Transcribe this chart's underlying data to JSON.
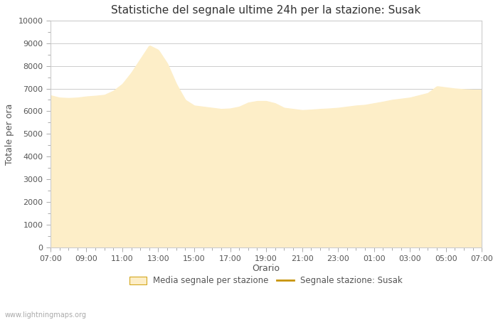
{
  "title": "Statistiche del segnale ultime 24h per la stazione: Susak",
  "xlabel": "Orario",
  "ylabel": "Totale per ora",
  "x_ticks": [
    "07:00",
    "09:00",
    "11:00",
    "13:00",
    "15:00",
    "17:00",
    "19:00",
    "21:00",
    "23:00",
    "01:00",
    "03:00",
    "05:00",
    "07:00"
  ],
  "x_values": [
    0,
    2,
    4,
    6,
    8,
    10,
    12,
    14,
    16,
    18,
    20,
    22,
    24
  ],
  "fill_color": "#fdeec8",
  "fill_edge_color": "#d4a820",
  "line_color": "#c8940a",
  "bg_color": "#ffffff",
  "grid_color": "#cccccc",
  "ylim": [
    0,
    10000
  ],
  "yticks": [
    0,
    1000,
    2000,
    3000,
    4000,
    5000,
    6000,
    7000,
    8000,
    9000,
    10000
  ],
  "legend_fill_label": "Media segnale per stazione",
  "legend_line_label": "Segnale stazione: Susak",
  "watermark": "www.lightningmaps.org",
  "key_t": [
    0,
    0.5,
    1.0,
    1.5,
    2.0,
    2.5,
    3.0,
    3.5,
    4.0,
    4.5,
    5.0,
    5.5,
    6.0,
    6.5,
    7.0,
    7.5,
    8.0,
    8.5,
    9.0,
    9.5,
    10.0,
    10.5,
    11.0,
    11.5,
    12.0,
    12.5,
    13.0,
    14.0,
    14.5,
    15.0,
    15.5,
    16.0,
    16.5,
    17.0,
    17.5,
    18.0,
    18.5,
    19.0,
    19.5,
    20.0,
    20.5,
    21.0,
    21.5,
    22.0,
    22.5,
    23.0,
    23.5,
    24.0
  ],
  "key_v": [
    6700,
    6600,
    6580,
    6600,
    6650,
    6680,
    6720,
    6900,
    7200,
    7700,
    8300,
    8900,
    8700,
    8100,
    7200,
    6500,
    6250,
    6200,
    6150,
    6100,
    6120,
    6200,
    6380,
    6450,
    6450,
    6350,
    6150,
    6050,
    6070,
    6100,
    6120,
    6150,
    6200,
    6250,
    6280,
    6350,
    6420,
    6500,
    6550,
    6600,
    6700,
    6800,
    7100,
    7050,
    7000,
    6970,
    6950,
    6950
  ]
}
